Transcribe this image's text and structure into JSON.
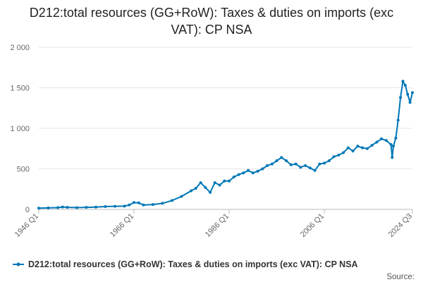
{
  "chart_data": {
    "type": "line",
    "title": "D212:total resources (GG+RoW): Taxes & duties on imports (exc VAT): CP NSA",
    "xlabel": "",
    "ylabel": "",
    "ylim": [
      0,
      2000
    ],
    "yticks": [
      0,
      500,
      1000,
      1500,
      2000
    ],
    "ytick_labels": [
      "0",
      "500",
      "1 000",
      "1 500",
      "2 000"
    ],
    "xticks": [
      "1946 Q1",
      "1966 Q1",
      "1986 Q1",
      "2006 Q1",
      "2024 Q3"
    ],
    "x_range": [
      "1946 Q1",
      "2024 Q3"
    ],
    "grid": "horizontal",
    "legend_position": "bottom",
    "source_label": "Source:",
    "series": [
      {
        "name": "D212:total resources (GG+RoW): Taxes & duties on imports (exc VAT): CP NSA",
        "color": "#0077b6",
        "points": [
          [
            "1946 Q1",
            15
          ],
          [
            "1948 Q1",
            18
          ],
          [
            "1950 Q1",
            22
          ],
          [
            "1951 Q1",
            30
          ],
          [
            "1952 Q1",
            25
          ],
          [
            "1954 Q1",
            22
          ],
          [
            "1956 Q1",
            25
          ],
          [
            "1958 Q1",
            28
          ],
          [
            "1960 Q1",
            35
          ],
          [
            "1962 Q1",
            38
          ],
          [
            "1964 Q1",
            40
          ],
          [
            "1965 Q1",
            55
          ],
          [
            "1966 Q1",
            85
          ],
          [
            "1967 Q1",
            80
          ],
          [
            "1968 Q1",
            55
          ],
          [
            "1970 Q1",
            60
          ],
          [
            "1972 Q1",
            75
          ],
          [
            "1974 Q1",
            110
          ],
          [
            "1976 Q1",
            160
          ],
          [
            "1978 Q1",
            230
          ],
          [
            "1979 Q1",
            260
          ],
          [
            "1980 Q1",
            330
          ],
          [
            "1981 Q1",
            270
          ],
          [
            "1982 Q1",
            210
          ],
          [
            "1983 Q1",
            330
          ],
          [
            "1984 Q1",
            300
          ],
          [
            "1985 Q1",
            350
          ],
          [
            "1986 Q1",
            350
          ],
          [
            "1987 Q1",
            400
          ],
          [
            "1988 Q1",
            430
          ],
          [
            "1989 Q1",
            450
          ],
          [
            "1990 Q1",
            480
          ],
          [
            "1991 Q1",
            450
          ],
          [
            "1992 Q1",
            470
          ],
          [
            "1993 Q1",
            500
          ],
          [
            "1994 Q1",
            540
          ],
          [
            "1995 Q1",
            560
          ],
          [
            "1996 Q1",
            600
          ],
          [
            "1997 Q1",
            640
          ],
          [
            "1998 Q1",
            600
          ],
          [
            "1999 Q1",
            550
          ],
          [
            "2000 Q1",
            560
          ],
          [
            "2001 Q1",
            520
          ],
          [
            "2002 Q1",
            540
          ],
          [
            "2003 Q1",
            510
          ],
          [
            "2004 Q1",
            480
          ],
          [
            "2005 Q1",
            560
          ],
          [
            "2006 Q1",
            570
          ],
          [
            "2007 Q1",
            600
          ],
          [
            "2008 Q1",
            650
          ],
          [
            "2009 Q1",
            670
          ],
          [
            "2010 Q1",
            700
          ],
          [
            "2011 Q1",
            760
          ],
          [
            "2012 Q1",
            720
          ],
          [
            "2013 Q1",
            780
          ],
          [
            "2014 Q1",
            760
          ],
          [
            "2015 Q1",
            750
          ],
          [
            "2016 Q1",
            790
          ],
          [
            "2017 Q1",
            830
          ],
          [
            "2018 Q1",
            870
          ],
          [
            "2019 Q1",
            850
          ],
          [
            "2020 Q1",
            800
          ],
          [
            "2020 Q2",
            640
          ],
          [
            "2020 Q3",
            780
          ],
          [
            "2021 Q1",
            880
          ],
          [
            "2021 Q3",
            1100
          ],
          [
            "2022 Q1",
            1380
          ],
          [
            "2022 Q3",
            1580
          ],
          [
            "2023 Q1",
            1530
          ],
          [
            "2023 Q3",
            1420
          ],
          [
            "2024 Q1",
            1320
          ],
          [
            "2024 Q3",
            1440
          ]
        ]
      }
    ]
  }
}
